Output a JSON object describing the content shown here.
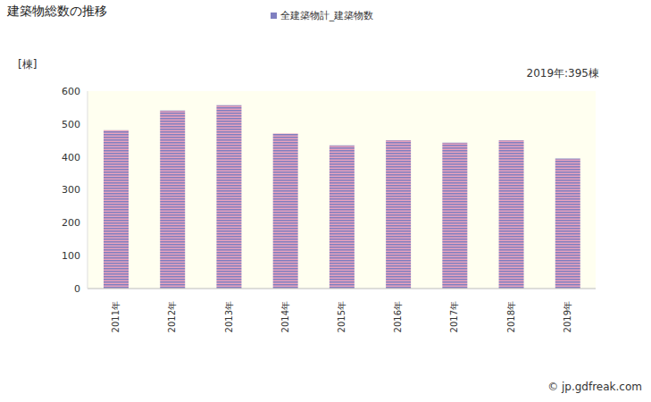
{
  "chart_data": {
    "type": "bar",
    "title": "建築物総数の推移",
    "y_label": "[棟]",
    "annotation": "2019年:395棟",
    "source": "© jp.gdfreak.com",
    "categories": [
      "2011年",
      "2012年",
      "2013年",
      "2014年",
      "2015年",
      "2016年",
      "2017年",
      "2018年",
      "2019年"
    ],
    "series": [
      {
        "name": "全建築物計_建築物数",
        "color": "#7f7fc0",
        "values": [
          481,
          541,
          557,
          471,
          435,
          451,
          443,
          451,
          395
        ]
      }
    ],
    "ylim": [
      0,
      600
    ],
    "yticks": [
      0,
      100,
      200,
      300,
      400,
      500,
      600
    ],
    "grid": false
  }
}
